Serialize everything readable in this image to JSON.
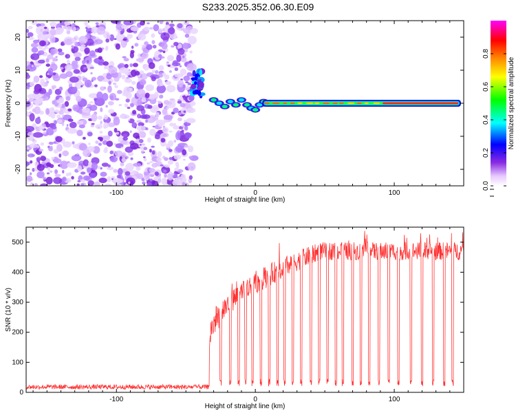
{
  "title": "S233.2025.352.06.30.E09",
  "chart_data": [
    {
      "type": "heatmap",
      "title": "S233.2025.352.06.30.E09",
      "xlabel": "Height of straight line (km)",
      "ylabel": "Frequency (Hz)",
      "xlim": [
        -165,
        150
      ],
      "ylim": [
        -25,
        25
      ],
      "xticks": [
        -100,
        0,
        100
      ],
      "yticks": [
        -20,
        -10,
        0,
        10,
        20
      ],
      "colorbar": {
        "label": "Normalized spectral amplitude",
        "range": [
          0,
          1
        ],
        "ticks": [
          "0.0",
          "0.2",
          "0.4",
          "0.6",
          "0.8"
        ],
        "colors": [
          "#ffffff",
          "#e6c8ff",
          "#8a2be2",
          "#0000ff",
          "#00ffff",
          "#00ff00",
          "#ffff00",
          "#ff7f00",
          "#ff0000",
          "#ff00ff"
        ]
      },
      "description_points": {
        "noise_region_km": [
          -165,
          -47
        ],
        "onset_km": -47,
        "carrier_freq_hz": 0,
        "blob_cluster": {
          "x": [
            -45,
            -38
          ],
          "y": [
            2,
            10
          ]
        }
      }
    },
    {
      "type": "line",
      "xlabel": "Height of straight line (km)",
      "ylabel": "SNR (10 * v/v)",
      "xlim": [
        -165,
        150
      ],
      "ylim": [
        0,
        550
      ],
      "xticks": [
        -100,
        0,
        100
      ],
      "yticks": [
        0,
        100,
        200,
        300,
        400,
        500
      ],
      "color": "#ff3030",
      "series_shape": {
        "noise_level": 18,
        "rise_start_km": -33,
        "plateau_level": 470,
        "dropouts_km": [
          -25,
          -18,
          -12,
          -7,
          -2,
          4,
          10,
          16,
          21,
          27,
          33,
          40,
          46,
          52,
          58,
          63,
          70,
          76,
          82,
          89,
          96,
          103,
          112,
          120,
          128,
          136,
          142
        ]
      }
    }
  ]
}
